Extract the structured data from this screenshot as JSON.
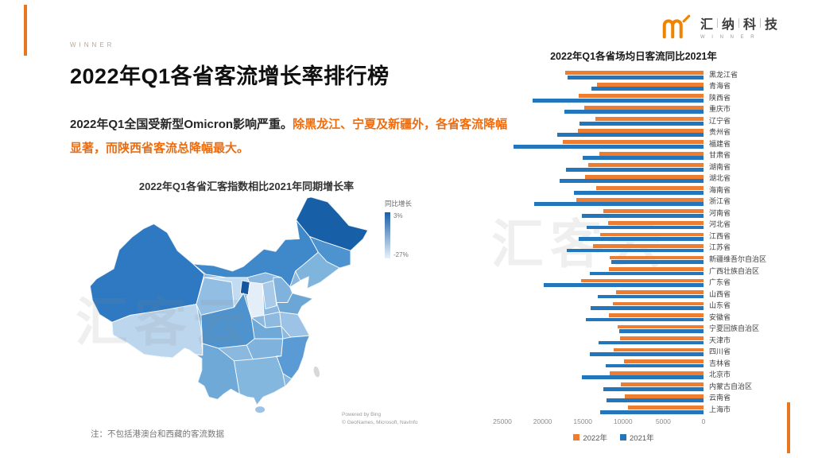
{
  "page": {
    "background": "#ffffff",
    "accent_orange": "#E87722"
  },
  "header": {
    "watermark_topleft": "WINNER",
    "logo": {
      "chars": [
        "汇",
        "纳",
        "科",
        "技"
      ],
      "subtext": "W I N N E R",
      "icon": "winner-crown-icon",
      "icon_color": "#F08300"
    }
  },
  "title": "2022年Q1各省客流增长率排行榜",
  "intro": {
    "black": "2022年Q1全国受新型Omicron影响严重。",
    "orange": "除黑龙江、宁夏及新疆外，各省客流降幅显著，而陕西省客流总降幅最大。"
  },
  "note": "注：不包括港澳台和西藏的客流数据",
  "watermark": "汇客云",
  "map_section": {
    "title": "2022年Q1各省汇客指数相比2021年同期增长率",
    "legend": {
      "title": "同比增长",
      "max_label": "3%",
      "min_label": "-27%",
      "max_color": "#1A5FA8",
      "min_color": "#E9F1F9"
    },
    "attribution_1": "Powered by Bing",
    "attribution_2": "© GeoNames, Microsoft, NavInfo"
  },
  "chart_data": [
    {
      "type": "choropleth",
      "title": "2022年Q1各省汇客指数相比2021年同期增长率",
      "metric": "同比增长",
      "value_range_labels": [
        "-27%",
        "3%"
      ],
      "region": "China provinces",
      "note": "注：不包括港澳台和西藏的客流数据"
    },
    {
      "type": "bar",
      "orientation": "horizontal",
      "value_axis_reversed": true,
      "title": "2022年Q1各省场均日客流同比2021年",
      "categories": [
        "黑龙江省",
        "青海省",
        "陕西省",
        "重庆市",
        "辽宁省",
        "贵州省",
        "福建省",
        "甘肃省",
        "湖南省",
        "湖北省",
        "海南省",
        "浙江省",
        "河南省",
        "河北省",
        "江西省",
        "江苏省",
        "新疆维吾尔自治区",
        "广西壮族自治区",
        "广东省",
        "山西省",
        "山东省",
        "安徽省",
        "宁夏回族自治区",
        "天津市",
        "四川省",
        "吉林省",
        "北京市",
        "内蒙古自治区",
        "云南省",
        "上海市"
      ],
      "series": [
        {
          "name": "2022年",
          "color": "#ED7D31",
          "values": [
            17200,
            13200,
            15500,
            14800,
            13400,
            15600,
            17500,
            12900,
            14300,
            14700,
            13300,
            15800,
            12500,
            11900,
            12800,
            13700,
            11700,
            11800,
            15200,
            10900,
            11300,
            11800,
            10700,
            10400,
            11200,
            9900,
            11700,
            10300,
            9800,
            9400
          ]
        },
        {
          "name": "2021年",
          "color": "#2376BC",
          "values": [
            16900,
            13900,
            21200,
            17300,
            15400,
            18200,
            23600,
            15000,
            17100,
            17900,
            16100,
            21000,
            15100,
            14500,
            15500,
            17000,
            11500,
            14100,
            19900,
            13100,
            14000,
            14600,
            10500,
            13000,
            14100,
            12200,
            15100,
            12500,
            12100,
            12800
          ]
        }
      ],
      "x_ticks": [
        "25000",
        "20000",
        "15000",
        "10000",
        "5000",
        "0"
      ],
      "xmax": 25000,
      "legend_position": "bottom"
    }
  ]
}
